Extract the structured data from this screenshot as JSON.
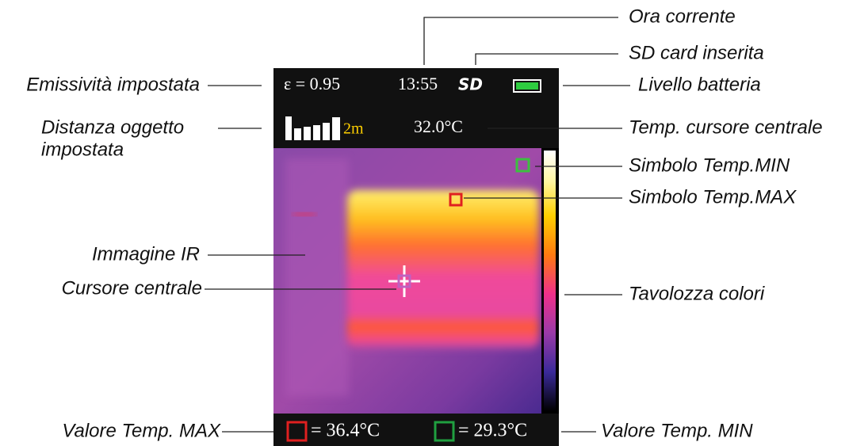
{
  "screen": {
    "emissivity": "ε = 0.95",
    "time": "13:55",
    "sd": "SD",
    "distance": "2m",
    "center_temp": "32.0°C",
    "max_temp": "= 36.4°C",
    "min_temp": "= 29.3°C"
  },
  "annotations": {
    "current_time": "Ora corrente",
    "sd_card": "SD card inserita",
    "emissivity": "Emissività impostata",
    "battery": "Livello batteria",
    "distance": [
      "Distanza oggetto",
      "impostata"
    ],
    "center_temp": "Temp. cursore centrale",
    "min_symbol": "Simbolo Temp.MIN",
    "max_symbol": "Simbolo Temp.MAX",
    "ir_image": "Immagine IR",
    "center_cursor": "Cursore centrale",
    "palette": "Tavolozza colori",
    "max_value": "Valore Temp. MAX",
    "min_value": "Valore Temp. MIN"
  }
}
